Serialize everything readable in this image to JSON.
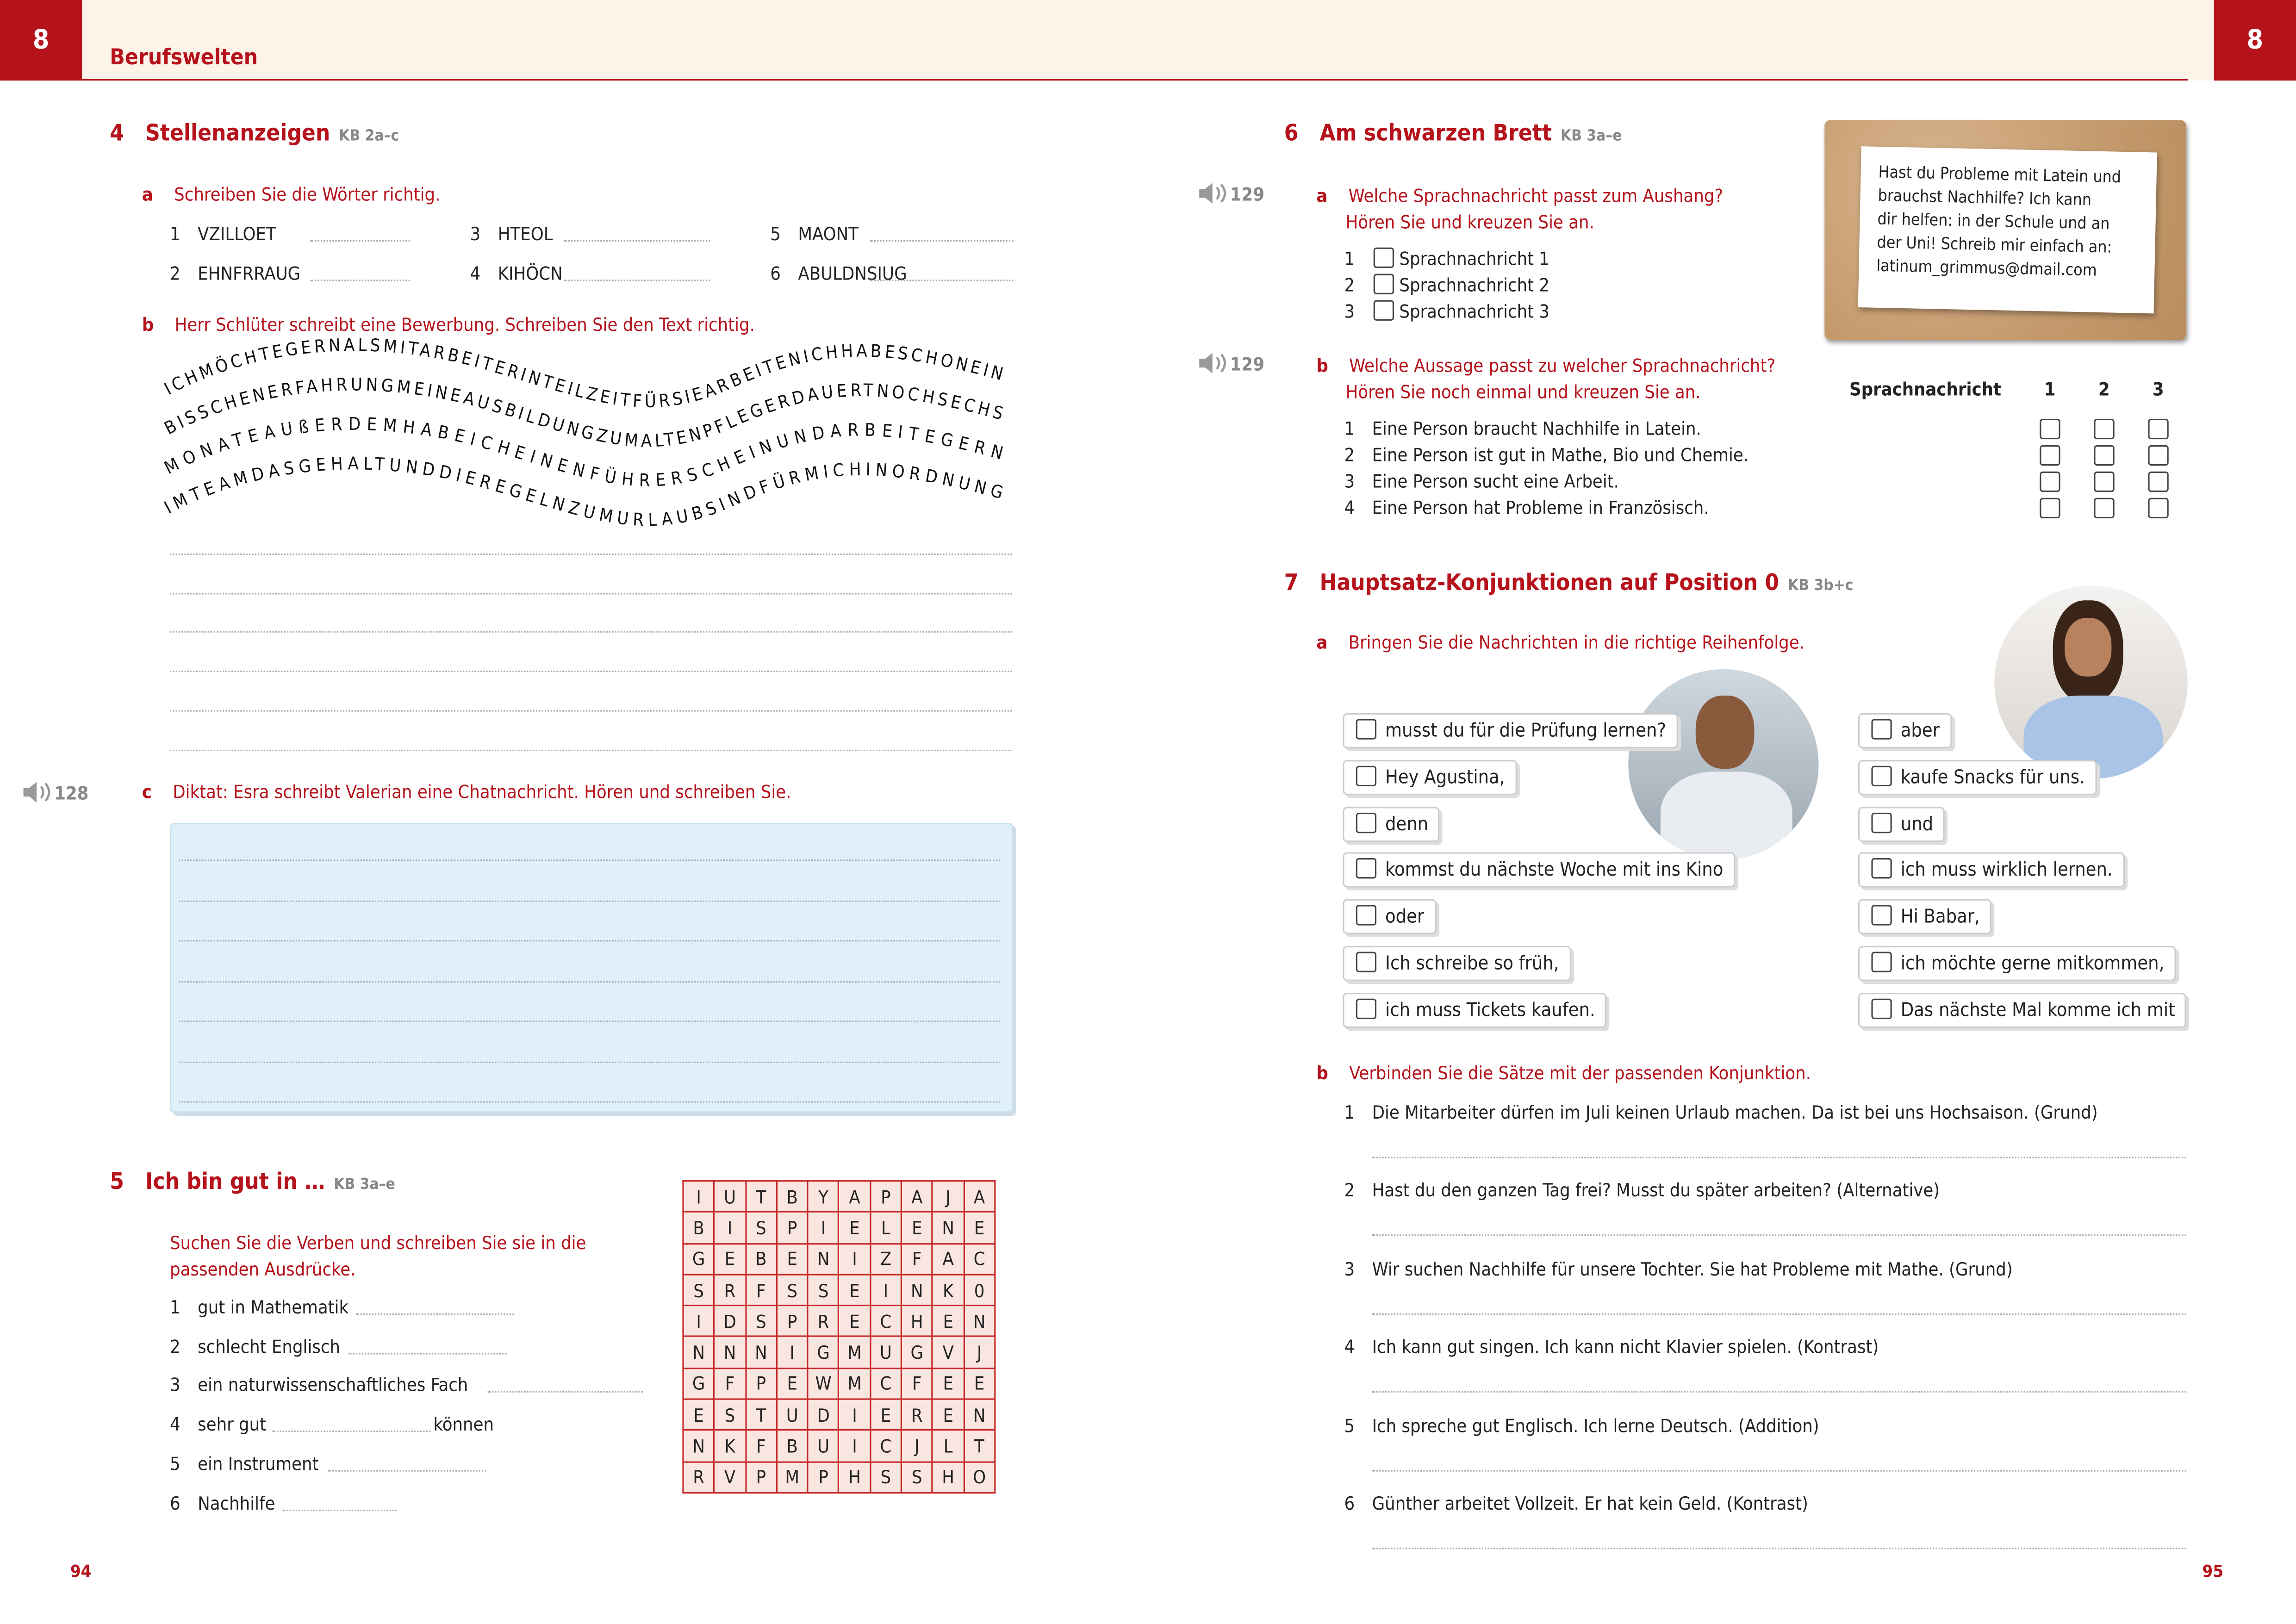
{
  "header": {
    "chapter": "8",
    "title": "Berufswelten"
  },
  "left": {
    "page_number": "94",
    "ex4": {
      "num": "4",
      "title": "Stellenanzeigen",
      "kb": "KB 2a–c",
      "a": {
        "letter": "a",
        "instruction": "Schreiben Sie die Wörter richtig.",
        "items": [
          {
            "n": "1",
            "w": "VZILLOET"
          },
          {
            "n": "2",
            "w": "EHNFRRAUG"
          },
          {
            "n": "3",
            "w": "HTEOL"
          },
          {
            "n": "4",
            "w": "KIHÖCN"
          },
          {
            "n": "5",
            "w": "MAONT"
          },
          {
            "n": "6",
            "w": "ABULDNSIUG"
          }
        ]
      },
      "b": {
        "letter": "b",
        "instruction": "Herr Schlüter schreibt eine Bewerbung. Schreiben Sie den Text richtig.",
        "wave_lines": [
          "ICHMÖCHTEGERNALSMITARBEITERINTEILZEITFÜRSIEARBEITENICHHABESCHONEIN",
          "BISSCHENERFAHRUNGMEINEAUSBILDUNGZUMALTENPFLEGERDAUERTNOCHSECHS",
          "MONATEAUßERDEMHABEICHEINENFÜHRERSCHEINUNDARBEITEGERN",
          "IMTEAMDASGEHALTUNDDIEREGELNZUMURLAUBSINDFÜRMICHINORDNUNG"
        ]
      },
      "c": {
        "letter": "c",
        "track": "128",
        "instruction": "Diktat: Esra schreibt Valerian eine Chatnachricht. Hören und schreiben Sie."
      }
    },
    "ex5": {
      "num": "5",
      "title": "Ich bin gut in …",
      "kb": "KB 3a–e",
      "instruction": "Suchen Sie die Verben und schreiben Sie sie in die passenden Ausdrücke.",
      "items": [
        {
          "n": "1",
          "t": "gut in Mathematik",
          "after": ""
        },
        {
          "n": "2",
          "t": "schlecht Englisch",
          "after": ""
        },
        {
          "n": "3",
          "t": "ein naturwissenschaftliches Fach",
          "after": ""
        },
        {
          "n": "4",
          "t": "sehr gut",
          "after": "können"
        },
        {
          "n": "5",
          "t": "ein Instrument",
          "after": ""
        },
        {
          "n": "6",
          "t": "Nachhilfe",
          "after": ""
        }
      ],
      "grid": [
        "IUTBYAPAJA",
        "BISPIELENE",
        "GEBENIZFAC",
        "SRFSSEINK0",
        "IDSPRECHEN",
        "NNNIGMUGVJ",
        "GFPEWMCFEE",
        "ESTUDIEREN",
        "NKFBUICJLT",
        "RVPMPHSSHO"
      ]
    }
  },
  "right": {
    "page_number": "95",
    "ex6": {
      "num": "6",
      "title": "Am schwarzen Brett",
      "kb": "KB 3a–e",
      "note": [
        "Hast du Probleme mit Latein und",
        "brauchst Nachhilfe? Ich kann",
        "dir helfen: in der Schule und an",
        "der Uni! Schreib mir einfach an:",
        "latinum_grimmus@dmail.com"
      ],
      "a": {
        "letter": "a",
        "track": "129",
        "instruction": [
          "Welche Sprachnachricht passt zum Aushang?",
          "Hören Sie und kreuzen Sie an."
        ],
        "options": [
          {
            "n": "1",
            "t": "Sprachnachricht 1"
          },
          {
            "n": "2",
            "t": "Sprachnachricht 2"
          },
          {
            "n": "3",
            "t": "Sprachnachricht 3"
          }
        ]
      },
      "b": {
        "letter": "b",
        "track": "129",
        "instruction": [
          "Welche Aussage passt zu welcher Sprachnachricht?",
          "Hören Sie noch einmal und kreuzen Sie an."
        ],
        "table_header": "Sprachnachricht",
        "columns": [
          "1",
          "2",
          "3"
        ],
        "items": [
          {
            "n": "1",
            "t": "Eine Person braucht Nachhilfe in Latein."
          },
          {
            "n": "2",
            "t": "Eine Person ist gut in Mathe, Bio und Chemie."
          },
          {
            "n": "3",
            "t": "Eine Person sucht eine Arbeit."
          },
          {
            "n": "4",
            "t": "Eine Person hat Probleme in Französisch."
          }
        ]
      }
    },
    "ex7": {
      "num": "7",
      "title": "Hauptsatz-Konjunktionen auf Position 0",
      "kb": "KB 3b+c",
      "a": {
        "letter": "a",
        "instruction": "Bringen Sie die Nachrichten in die richtige Reihenfolge.",
        "left_items": [
          "musst du für die Prüfung lernen?",
          "Hey Agustina,",
          "denn",
          "kommst du nächste Woche mit ins Kino",
          "oder",
          "Ich schreibe so früh,",
          "ich muss Tickets kaufen."
        ],
        "right_items": [
          "aber",
          "kaufe Snacks für uns.",
          "und",
          "ich muss wirklich lernen.",
          "Hi Babar,",
          "ich möchte gerne mitkommen,",
          "Das nächste Mal komme ich mit"
        ]
      },
      "b": {
        "letter": "b",
        "instruction": "Verbinden Sie die Sätze mit der passenden Konjunktion.",
        "items": [
          {
            "n": "1",
            "t": "Die Mitarbeiter dürfen im Juli keinen Urlaub machen. Da ist bei uns Hochsaison. (Grund)"
          },
          {
            "n": "2",
            "t": "Hast du den ganzen Tag frei? Musst du später arbeiten? (Alternative)"
          },
          {
            "n": "3",
            "t": "Wir suchen Nachhilfe für unsere Tochter. Sie hat Probleme mit Mathe. (Grund)"
          },
          {
            "n": "4",
            "t": "Ich kann gut singen. Ich kann nicht Klavier spielen. (Kontrast)"
          },
          {
            "n": "5",
            "t": "Ich spreche gut Englisch. Ich lerne Deutsch. (Addition)"
          },
          {
            "n": "6",
            "t": "Günther arbeitet Vollzeit. Er hat kein Geld. (Kontrast)"
          }
        ]
      }
    }
  },
  "colors": {
    "accent": "#b5121b",
    "header_bg": "#fdf3e8",
    "dictation_box": "#e0f0fb",
    "grid_bg": "#fae6e1"
  }
}
